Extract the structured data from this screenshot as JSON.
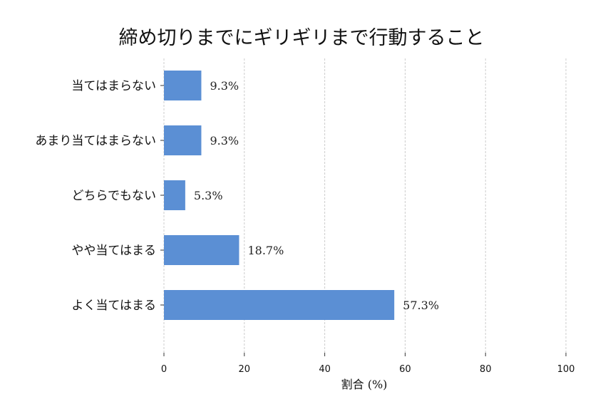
{
  "chart_data": {
    "type": "bar",
    "orientation": "horizontal",
    "title": "締め切りまでにギリギリまで行動すること",
    "xlabel": "割合 (%)",
    "ylabel": "",
    "categories": [
      "当てはまらない",
      "あまり当てはまらない",
      "どちらでもない",
      "やや当てはまる",
      "よく当てはまる"
    ],
    "values": [
      9.3,
      9.3,
      5.3,
      18.7,
      57.3
    ],
    "value_labels": [
      "9.3%",
      "9.3%",
      "5.3%",
      "18.7%",
      "57.3%"
    ],
    "xlim": [
      0,
      100
    ],
    "xticks": [
      0,
      20,
      40,
      60,
      80,
      100
    ],
    "grid": "vertical-dashed",
    "legend": "none",
    "bar_color": "#5b8fd4"
  }
}
